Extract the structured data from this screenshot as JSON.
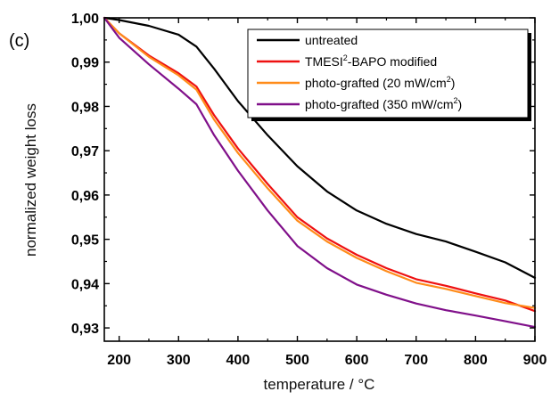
{
  "panel_label": "(c)",
  "chart_data": {
    "type": "line",
    "xlabel": "temperature / °C",
    "ylabel": "normalized weight loss",
    "xlim": [
      175,
      900
    ],
    "ylim": [
      0.927,
      1.0
    ],
    "xticks": [
      200,
      300,
      400,
      500,
      600,
      700,
      800,
      900
    ],
    "xtick_labels": [
      "200",
      "300",
      "400",
      "500",
      "600",
      "700",
      "800",
      "900"
    ],
    "yticks": [
      0.93,
      0.94,
      0.95,
      0.96,
      0.97,
      0.98,
      0.99,
      1.0
    ],
    "ytick_labels": [
      "0,93",
      "0,94",
      "0,95",
      "0,96",
      "0,97",
      "0,98",
      "0,99",
      "1,00"
    ],
    "grid": false,
    "legend_position": "top-right",
    "series": [
      {
        "name": "untreated",
        "legend_main": "untreated",
        "legend_sup": "",
        "legend_tail": "",
        "color": "#000000",
        "x": [
          175,
          200,
          250,
          300,
          330,
          360,
          400,
          450,
          500,
          550,
          600,
          650,
          700,
          750,
          800,
          850,
          900
        ],
        "y": [
          1.0,
          0.9995,
          0.9982,
          0.9962,
          0.9935,
          0.9885,
          0.9812,
          0.9735,
          0.9665,
          0.9608,
          0.9565,
          0.9535,
          0.9512,
          0.9495,
          0.9472,
          0.9448,
          0.9413
        ]
      },
      {
        "name": "TMESI2-BAPO modified",
        "legend_main": "TMESI",
        "legend_sup": "2",
        "legend_tail": "-BAPO modified",
        "color": "#ee1111",
        "x": [
          175,
          200,
          250,
          300,
          330,
          360,
          400,
          450,
          500,
          550,
          600,
          650,
          700,
          750,
          800,
          850,
          900
        ],
        "y": [
          1.0,
          0.9965,
          0.9915,
          0.9875,
          0.9845,
          0.978,
          0.9705,
          0.9625,
          0.955,
          0.9502,
          0.9465,
          0.9435,
          0.941,
          0.9395,
          0.9378,
          0.9362,
          0.9338
        ]
      },
      {
        "name": "photo-grafted (20 mW/cm2)",
        "legend_main": "photo-grafted (20 mW/cm",
        "legend_sup": "2",
        "legend_tail": ")",
        "color": "#ff8c1a",
        "x": [
          175,
          200,
          250,
          300,
          330,
          360,
          400,
          450,
          500,
          550,
          600,
          650,
          700,
          750,
          800,
          850,
          900
        ],
        "y": [
          1.0,
          0.9965,
          0.9912,
          0.987,
          0.9838,
          0.977,
          0.9695,
          0.9615,
          0.9542,
          0.9495,
          0.9458,
          0.9428,
          0.9402,
          0.9388,
          0.9372,
          0.9356,
          0.9345
        ]
      },
      {
        "name": "photo-grafted (350 mW/cm2)",
        "legend_main": "photo-grafted (350 mW/cm",
        "legend_sup": "2",
        "legend_tail": ")",
        "color": "#80108a",
        "x": [
          175,
          200,
          250,
          300,
          330,
          360,
          400,
          450,
          500,
          550,
          600,
          650,
          700,
          750,
          800,
          850,
          900
        ],
        "y": [
          1.0,
          0.9955,
          0.9895,
          0.984,
          0.9805,
          0.9735,
          0.9655,
          0.9565,
          0.9485,
          0.9435,
          0.9398,
          0.9375,
          0.9355,
          0.934,
          0.9328,
          0.9315,
          0.9302
        ]
      }
    ]
  }
}
